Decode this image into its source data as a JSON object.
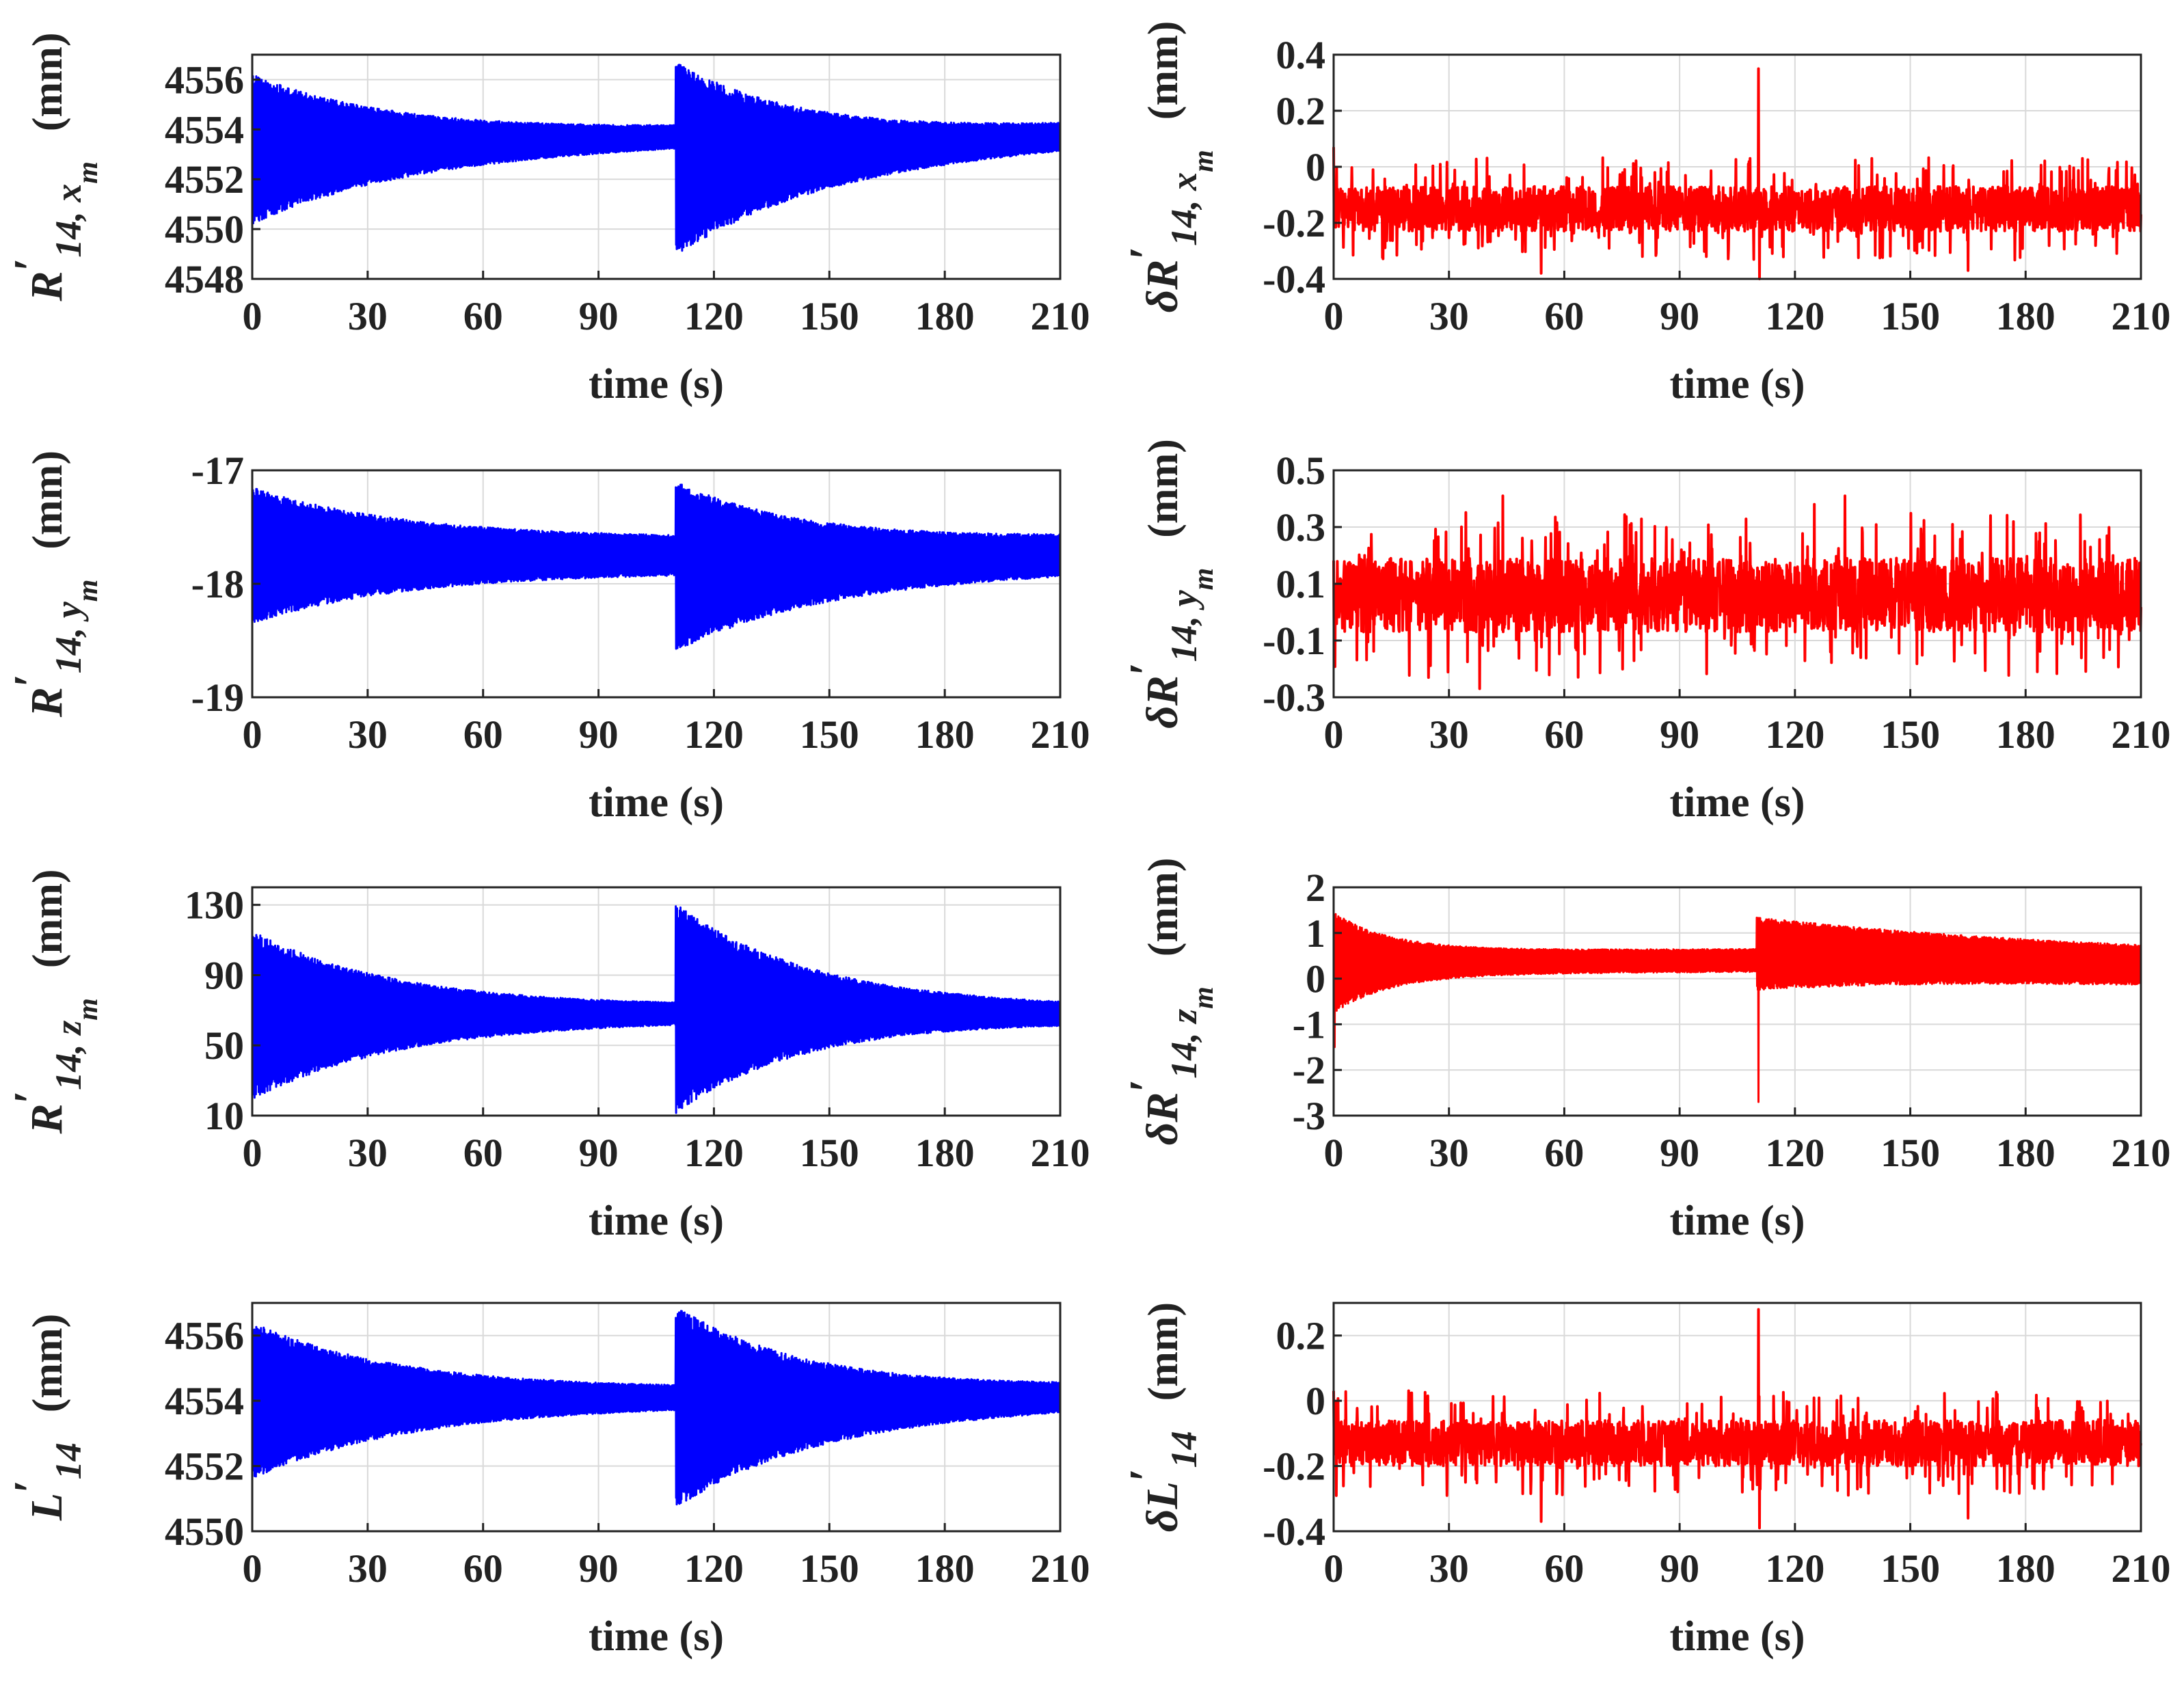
{
  "figure": {
    "colors": {
      "signal": "#0000ff",
      "error": "#ff0000",
      "grid": "#d9d9d9",
      "axis": "#222222"
    }
  },
  "chart_data": [
    {
      "id": "panel-rx",
      "type": "line",
      "series_color": "#0000ff",
      "title": "",
      "xlabel": "time (s)",
      "ylabel": {
        "main": "R",
        "prime": "′",
        "sub": "14, x",
        "subsub": "m",
        "unit": "(mm)"
      },
      "xlim": [
        0,
        210
      ],
      "ylim": [
        4548,
        4557
      ],
      "xticks": [
        0,
        30,
        60,
        90,
        120,
        150,
        180,
        210
      ],
      "yticks": [
        4548,
        4550,
        4552,
        4554,
        4556
      ],
      "signal": {
        "kind": "decay",
        "segments": [
          {
            "t_start": 0,
            "t_end": 110,
            "center_start": 4553.2,
            "center_end": 4553.7,
            "amp_start": 3.0,
            "amp_end": 0.3,
            "tau": 40
          },
          {
            "t_start": 110,
            "t_end": 210,
            "center_start": 4552.8,
            "center_end": 4553.7,
            "amp_start": 3.9,
            "amp_end": 0.35,
            "tau": 36
          }
        ]
      }
    },
    {
      "id": "panel-drx",
      "type": "line",
      "series_color": "#ff0000",
      "title": "",
      "xlabel": "time (s)",
      "ylabel": {
        "main": "δR",
        "prime": "′",
        "sub": "14, x",
        "subsub": "m",
        "unit": "(mm)"
      },
      "xlim": [
        0,
        210
      ],
      "ylim": [
        -0.4,
        0.4
      ],
      "xticks": [
        0,
        30,
        60,
        90,
        120,
        150,
        180,
        210
      ],
      "yticks": [
        -0.4,
        -0.2,
        0,
        0.2,
        0.4
      ],
      "signal": {
        "kind": "noise",
        "base": -0.15,
        "amp": 0.08,
        "spikes": [
          {
            "t": 0,
            "value": 0.07
          },
          {
            "t": 110.5,
            "value": 0.35
          },
          {
            "t": 110.8,
            "value": -0.4
          },
          {
            "t": 54,
            "value": -0.38
          },
          {
            "t": 165,
            "value": -0.37
          }
        ]
      }
    },
    {
      "id": "panel-ry",
      "type": "line",
      "series_color": "#0000ff",
      "title": "",
      "xlabel": "time (s)",
      "ylabel": {
        "main": "R",
        "prime": "′",
        "sub": "14, y",
        "subsub": "m",
        "unit": "(mm)"
      },
      "xlim": [
        0,
        210
      ],
      "ylim": [
        -19,
        -17
      ],
      "xticks": [
        0,
        30,
        60,
        90,
        120,
        150,
        180,
        210
      ],
      "yticks": [
        -19,
        -18,
        -17
      ],
      "signal": {
        "kind": "decay",
        "segments": [
          {
            "t_start": 0,
            "t_end": 110,
            "center_start": -17.75,
            "center_end": -17.75,
            "amp_start": 0.6,
            "amp_end": 0.15,
            "tau": 40
          },
          {
            "t_start": 110,
            "t_end": 210,
            "center_start": -17.85,
            "center_end": -17.75,
            "amp_start": 0.75,
            "amp_end": 0.15,
            "tau": 36
          }
        ]
      }
    },
    {
      "id": "panel-dry",
      "type": "line",
      "series_color": "#ff0000",
      "title": "",
      "xlabel": "time (s)",
      "ylabel": {
        "main": "δR",
        "prime": "′",
        "sub": "14, y",
        "subsub": "m",
        "unit": "(mm)"
      },
      "xlim": [
        0,
        210
      ],
      "ylim": [
        -0.3,
        0.5
      ],
      "xticks": [
        0,
        30,
        60,
        90,
        120,
        150,
        180,
        210
      ],
      "yticks": [
        -0.3,
        -0.1,
        0.1,
        0.3,
        0.5
      ],
      "signal": {
        "kind": "noise",
        "base": 0.06,
        "amp": 0.13,
        "spikes": [
          {
            "t": 38,
            "value": -0.27
          },
          {
            "t": 44,
            "value": 0.41
          },
          {
            "t": 125,
            "value": 0.38
          },
          {
            "t": 133,
            "value": 0.41
          }
        ]
      }
    },
    {
      "id": "panel-rz",
      "type": "line",
      "series_color": "#0000ff",
      "title": "",
      "xlabel": "time (s)",
      "ylabel": {
        "main": "R",
        "prime": "′",
        "sub": "14, z",
        "subsub": "m",
        "unit": "(mm)"
      },
      "xlim": [
        0,
        210
      ],
      "ylim": [
        10,
        140
      ],
      "xticks": [
        0,
        30,
        60,
        90,
        120,
        150,
        180,
        210
      ],
      "yticks": [
        10,
        50,
        90,
        130
      ],
      "signal": {
        "kind": "decay",
        "segments": [
          {
            "t_start": 0,
            "t_end": 110,
            "center_start": 67,
            "center_end": 68,
            "amp_start": 48,
            "amp_end": 4,
            "tau": 38
          },
          {
            "t_start": 110,
            "t_end": 210,
            "center_start": 71,
            "center_end": 68,
            "amp_start": 60,
            "amp_end": 4,
            "tau": 34
          }
        ]
      }
    },
    {
      "id": "panel-drz",
      "type": "line",
      "series_color": "#ff0000",
      "title": "",
      "xlabel": "time (s)",
      "ylabel": {
        "main": "δR",
        "prime": "′",
        "sub": "14, z",
        "subsub": "m",
        "unit": "(mm)"
      },
      "xlim": [
        0,
        210
      ],
      "ylim": [
        -3,
        2
      ],
      "xticks": [
        0,
        30,
        60,
        90,
        120,
        150,
        180,
        210
      ],
      "yticks": [
        -3,
        -2,
        -1,
        0,
        1,
        2
      ],
      "signal": {
        "kind": "decay",
        "segments": [
          {
            "t_start": 0,
            "t_end": 110,
            "center_start": 0.35,
            "center_end": 0.4,
            "amp_start": 1.1,
            "amp_end": 0.25,
            "tau": 15
          },
          {
            "t_start": 110,
            "t_end": 210,
            "center_start": 0.55,
            "center_end": 0.3,
            "amp_start": 0.8,
            "amp_end": 0.35,
            "tau": 60
          }
        ],
        "spikes": [
          {
            "t": 0.3,
            "value": -1.5
          },
          {
            "t": 110.5,
            "value": -2.7
          }
        ]
      }
    },
    {
      "id": "panel-l",
      "type": "line",
      "series_color": "#0000ff",
      "title": "",
      "xlabel": "time (s)",
      "ylabel": {
        "main": "L",
        "prime": "′",
        "sub": "14",
        "subsub": "",
        "unit": "(mm)"
      },
      "xlim": [
        0,
        210
      ],
      "ylim": [
        4550,
        4557
      ],
      "xticks": [
        0,
        30,
        60,
        90,
        120,
        150,
        180,
        210
      ],
      "yticks": [
        4550,
        4552,
        4554,
        4556
      ],
      "signal": {
        "kind": "decay",
        "segments": [
          {
            "t_start": 0,
            "t_end": 110,
            "center_start": 4554.0,
            "center_end": 4554.1,
            "amp_start": 2.4,
            "amp_end": 0.25,
            "tau": 40
          },
          {
            "t_start": 110,
            "t_end": 210,
            "center_start": 4553.8,
            "center_end": 4554.1,
            "amp_start": 3.1,
            "amp_end": 0.3,
            "tau": 36
          }
        ]
      }
    },
    {
      "id": "panel-dl",
      "type": "line",
      "series_color": "#ff0000",
      "title": "",
      "xlabel": "time (s)",
      "ylabel": {
        "main": "δL",
        "prime": "′",
        "sub": "14",
        "subsub": "",
        "unit": "(mm)"
      },
      "xlim": [
        0,
        210
      ],
      "ylim": [
        -0.4,
        0.3
      ],
      "xticks": [
        0,
        30,
        60,
        90,
        120,
        150,
        180,
        210
      ],
      "yticks": [
        -0.4,
        -0.2,
        0,
        0.2
      ],
      "signal": {
        "kind": "noise",
        "base": -0.13,
        "amp": 0.07,
        "spikes": [
          {
            "t": 0,
            "value": 0.03
          },
          {
            "t": 110.5,
            "value": 0.28
          },
          {
            "t": 110.8,
            "value": -0.39
          },
          {
            "t": 54,
            "value": -0.37
          },
          {
            "t": 165,
            "value": -0.36
          }
        ]
      }
    }
  ]
}
